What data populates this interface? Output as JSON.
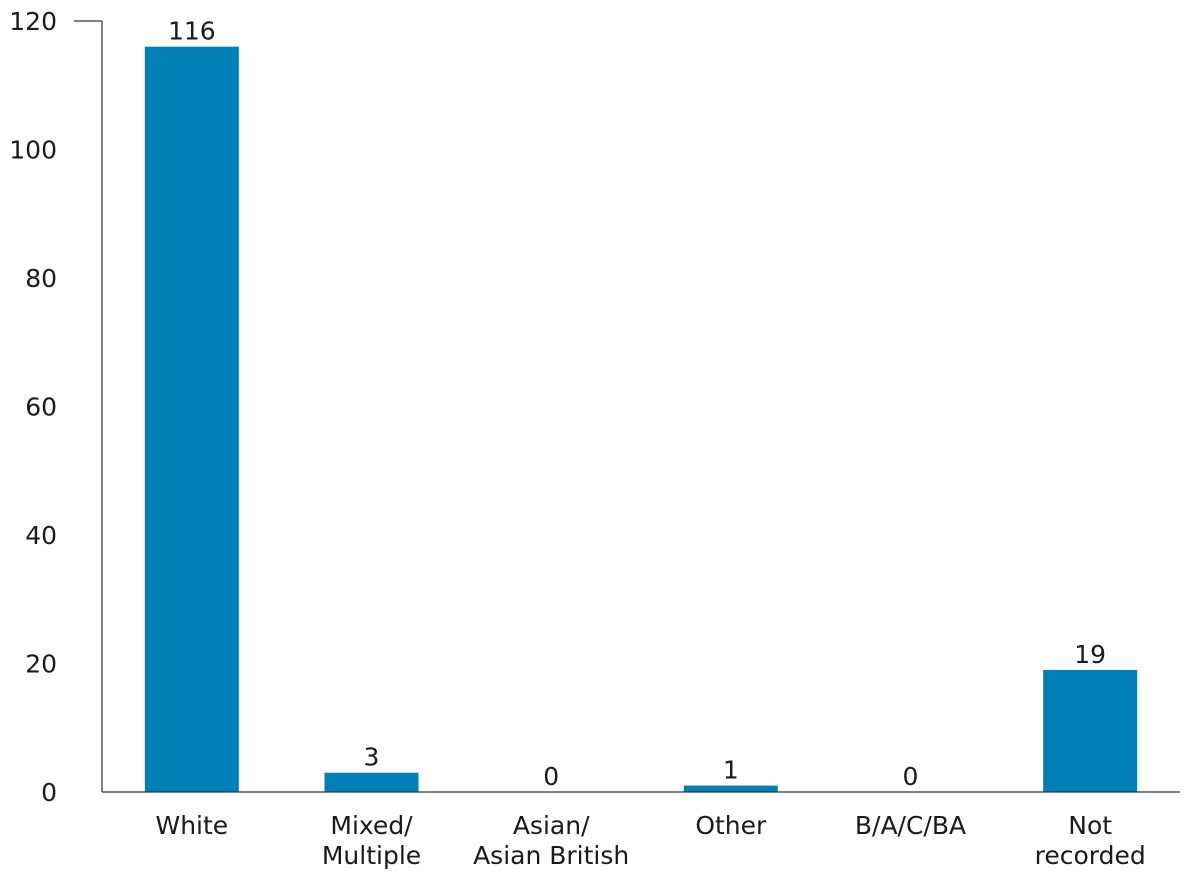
{
  "chart_data": {
    "type": "bar",
    "categories": [
      [
        "White"
      ],
      [
        "Mixed/",
        "Multiple"
      ],
      [
        "Asian/",
        "Asian British"
      ],
      [
        "Other"
      ],
      [
        "B/A/C/BA"
      ],
      [
        "Not",
        "recorded"
      ]
    ],
    "values": [
      116,
      3,
      0,
      1,
      0,
      19
    ],
    "data_labels": [
      "116",
      "3",
      "0",
      "1",
      "0",
      "19"
    ],
    "ylim": [
      0,
      120
    ],
    "yticks": [
      "0",
      "20",
      "40",
      "60",
      "80",
      "100",
      "120"
    ],
    "bar_color": "#0080b7",
    "grid": false,
    "legend": "none",
    "title": "",
    "xlabel": "",
    "ylabel": ""
  }
}
